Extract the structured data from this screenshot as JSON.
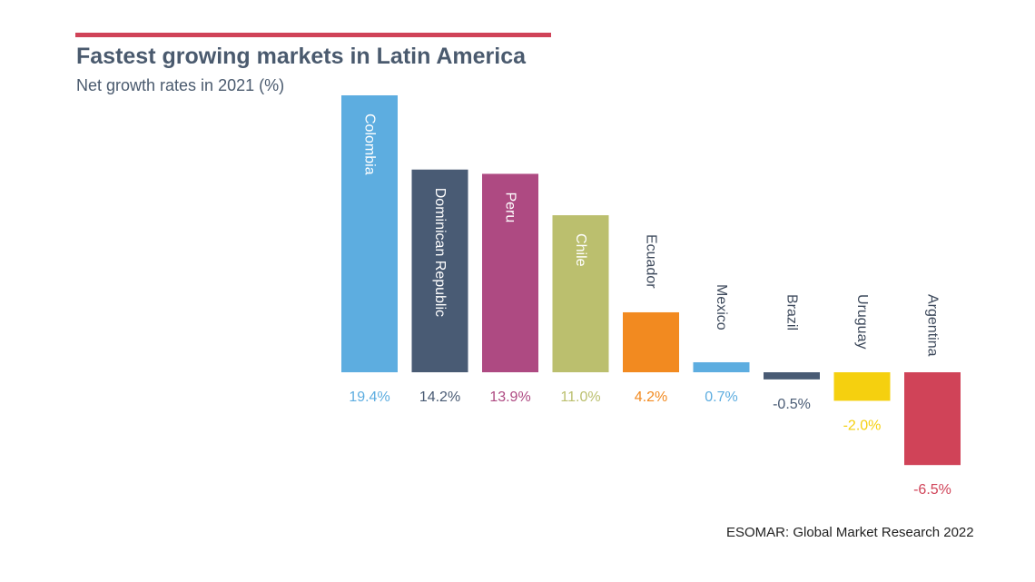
{
  "header": {
    "title": "Fastest growing markets in Latin America",
    "subtitle": "Net growth rates in 2021 (%)"
  },
  "footer": {
    "source": "ESOMAR: Global Market Research 2022"
  },
  "colors": {
    "accent": "#d04358",
    "title": "#4a5a6e",
    "label_dark": "#3e4a5c",
    "label_light": "#ffffff"
  },
  "chart_data": {
    "type": "bar",
    "title": "Fastest growing markets in Latin America",
    "subtitle": "Net growth rates in 2021 (%)",
    "xlabel": "",
    "ylabel": "",
    "grid": false,
    "legend": "none",
    "ylim": [
      -6.5,
      19.4
    ],
    "categories": [
      "Colombia",
      "Dominican Republic",
      "Peru",
      "Chile",
      "Ecuador",
      "Mexico",
      "Brazil",
      "Uruguay",
      "Argentina"
    ],
    "values": [
      19.4,
      14.2,
      13.9,
      11.0,
      4.2,
      0.7,
      -0.5,
      -2.0,
      -6.5
    ],
    "value_labels": [
      "19.4%",
      "14.2%",
      "13.9%",
      "11.0%",
      "4.2%",
      "0.7%",
      "-0.5%",
      "-2.0%",
      "-6.5%"
    ],
    "colors": [
      "#5dade0",
      "#495b74",
      "#ae4a82",
      "#bbbf6e",
      "#f28a20",
      "#5dade0",
      "#495b74",
      "#f5d00f",
      "#d04358"
    ]
  }
}
